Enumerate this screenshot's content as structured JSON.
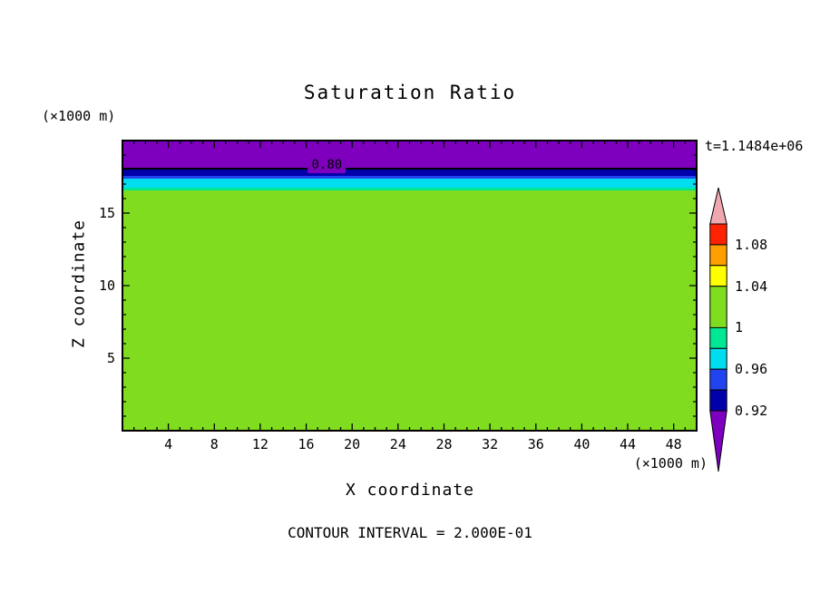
{
  "title": "Saturation Ratio",
  "time_label": "t=1.1484e+06",
  "contour_interval_label": "CONTOUR INTERVAL = 2.000E-01",
  "axes": {
    "x_title": "X coordinate",
    "y_title": "Z coordinate",
    "x_units": "(×1000 m)",
    "y_units": "(×1000 m)",
    "x_range": [
      0,
      50
    ],
    "y_range": [
      0,
      20
    ],
    "x_major_ticks": [
      4,
      8,
      12,
      16,
      20,
      24,
      28,
      32,
      36,
      40,
      44,
      48
    ],
    "y_major_ticks": [
      5,
      10,
      15
    ],
    "x_minor_step": 1,
    "y_minor_step": 1
  },
  "chart_data": {
    "type": "heatmap",
    "title": "Saturation Ratio",
    "xlabel": "X coordinate (×1000 m)",
    "ylabel": "Z coordinate (×1000 m)",
    "xlim": [
      0,
      50
    ],
    "ylim": [
      0,
      20
    ],
    "contour_interval": "2.000E-01",
    "time": "1.1484e+06",
    "bands": [
      {
        "value_range": "~0.80",
        "y_from": 18.05,
        "y_to": 20.0,
        "color": "#7E00BE"
      },
      {
        "value_range": "0.92-0.94",
        "y_from": 17.55,
        "y_to": 18.05,
        "color": "#0000AA"
      },
      {
        "value_range": "0.94-0.96",
        "y_from": 17.35,
        "y_to": 17.55,
        "color": "#2244EE"
      },
      {
        "value_range": "0.96-0.98",
        "y_from": 16.75,
        "y_to": 17.35,
        "color": "#00DDEE"
      },
      {
        "value_range": "0.98-1.00",
        "y_from": 16.55,
        "y_to": 16.75,
        "color": "#00E896"
      },
      {
        "value_range": "~1.00",
        "y_from": 0.0,
        "y_to": 16.55,
        "color": "#7FDC1F"
      }
    ],
    "contour_line": {
      "label": "0.80",
      "value": 0.8,
      "y": 18.05,
      "x_label_pos": 17.8
    },
    "colorbar": {
      "value_top": 1.1,
      "value_bottom": 0.92,
      "labels": [
        {
          "text": "1.08",
          "value": 1.08
        },
        {
          "text": "1.04",
          "value": 1.04
        },
        {
          "text": "1",
          "value": 1.0
        },
        {
          "text": "0.96",
          "value": 0.96
        },
        {
          "text": "0.92",
          "value": 0.92
        }
      ],
      "segments": [
        {
          "from": 1.08,
          "to": 1.1,
          "color": "#FF2200"
        },
        {
          "from": 1.06,
          "to": 1.08,
          "color": "#FFA000"
        },
        {
          "from": 1.04,
          "to": 1.06,
          "color": "#FFFF00"
        },
        {
          "from": 1.0,
          "to": 1.04,
          "color": "#7FDC1F"
        },
        {
          "from": 0.98,
          "to": 1.0,
          "color": "#00E896"
        },
        {
          "from": 0.96,
          "to": 0.98,
          "color": "#00DDEE"
        },
        {
          "from": 0.94,
          "to": 0.96,
          "color": "#2244EE"
        },
        {
          "from": 0.92,
          "to": 0.94,
          "color": "#0000AA"
        }
      ],
      "arrow_over": {
        "color": "#F0A8B0"
      },
      "arrow_under": {
        "color": "#7E00BE"
      }
    }
  }
}
